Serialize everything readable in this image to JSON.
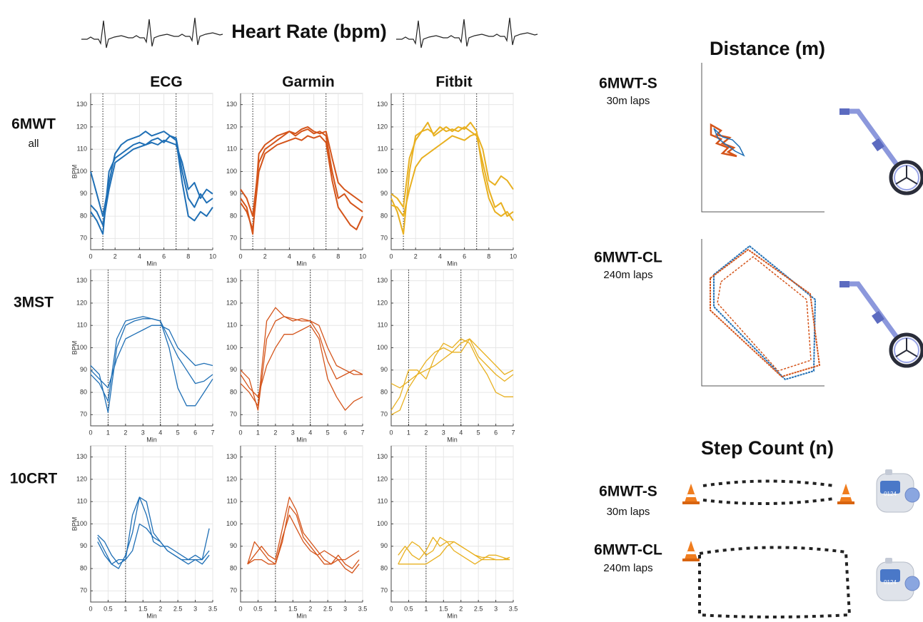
{
  "heart_rate": {
    "title": "Heart Rate (bpm)",
    "columns": [
      "ECG",
      "Garmin",
      "Fitbit"
    ],
    "rows": [
      {
        "label": "6MWT",
        "sublabel": "all"
      },
      {
        "label": "3MST"
      },
      {
        "label": "10CRT"
      }
    ]
  },
  "chart_data": [
    {
      "type": "line",
      "x": [
        0,
        0.5,
        1,
        1.5,
        2,
        2.5,
        3,
        3.5,
        4,
        4.5,
        5,
        5.5,
        6,
        6.5,
        7,
        7.5,
        8,
        8.5,
        9,
        9.5,
        10
      ],
      "series": [
        {
          "color": "#1f6fb5",
          "values": [
            82,
            78,
            72,
            100,
            106,
            108,
            110,
            112,
            113,
            112,
            114,
            115,
            113,
            116,
            115,
            100,
            88,
            84,
            90,
            86,
            88
          ]
        },
        {
          "color": "#1f6fb5",
          "values": [
            100,
            90,
            80,
            95,
            108,
            112,
            114,
            115,
            116,
            118,
            116,
            117,
            118,
            116,
            114,
            95,
            80,
            78,
            82,
            80,
            84
          ]
        },
        {
          "color": "#1f6fb5",
          "values": [
            85,
            82,
            76,
            92,
            104,
            106,
            108,
            110,
            111,
            112,
            113,
            112,
            114,
            113,
            112,
            104,
            92,
            95,
            88,
            92,
            90
          ]
        }
      ],
      "xlim": [
        0,
        10
      ],
      "xticks": [
        0,
        2,
        4,
        6,
        8,
        10
      ],
      "ylim": [
        65,
        135
      ],
      "yticks": [
        70,
        80,
        90,
        100,
        110,
        120,
        130
      ],
      "grid": true,
      "xlabel": "Min",
      "ylabel": "BPM",
      "vlines": [
        1,
        7
      ]
    },
    {
      "type": "line",
      "x": [
        0,
        0.5,
        1,
        1.5,
        2,
        2.5,
        3,
        3.5,
        4,
        4.5,
        5,
        5.5,
        6,
        6.5,
        7,
        7.5,
        8,
        8.5,
        9,
        9.5,
        10
      ],
      "series": [
        {
          "color": "#d4541a",
          "values": [
            88,
            84,
            72,
            108,
            112,
            114,
            116,
            117,
            118,
            116,
            118,
            119,
            117,
            118,
            116,
            100,
            88,
            90,
            86,
            84,
            82
          ]
        },
        {
          "color": "#d4541a",
          "values": [
            86,
            82,
            74,
            100,
            108,
            110,
            112,
            113,
            114,
            115,
            114,
            116,
            115,
            116,
            113,
            96,
            84,
            80,
            76,
            74,
            80
          ]
        },
        {
          "color": "#d4541a",
          "values": [
            92,
            88,
            80,
            104,
            110,
            112,
            114,
            116,
            118,
            117,
            119,
            120,
            118,
            117,
            118,
            106,
            95,
            92,
            90,
            88,
            86
          ]
        }
      ],
      "xlim": [
        0,
        10
      ],
      "xticks": [
        0,
        2,
        4,
        6,
        8,
        10
      ],
      "ylim": [
        65,
        135
      ],
      "yticks": [
        70,
        80,
        90,
        100,
        110,
        120,
        130
      ],
      "grid": true,
      "xlabel": "Min",
      "vlines": [
        1,
        7
      ]
    },
    {
      "type": "line",
      "x": [
        0,
        0.5,
        1,
        1.5,
        2,
        2.5,
        3,
        3.5,
        4,
        4.5,
        5,
        5.5,
        6,
        6.5,
        7,
        7.5,
        8,
        8.5,
        9,
        9.5,
        10
      ],
      "series": [
        {
          "color": "#e8b020",
          "values": [
            88,
            82,
            72,
            100,
            116,
            118,
            119,
            117,
            120,
            118,
            119,
            118,
            120,
            118,
            116,
            104,
            92,
            84,
            86,
            80,
            82
          ]
        },
        {
          "color": "#e8b020",
          "values": [
            85,
            84,
            80,
            92,
            102,
            106,
            108,
            110,
            112,
            114,
            116,
            115,
            114,
            116,
            117,
            110,
            96,
            94,
            98,
            96,
            92
          ]
        },
        {
          "color": "#e8b020",
          "values": [
            90,
            88,
            84,
            106,
            114,
            118,
            122,
            116,
            118,
            120,
            118,
            120,
            119,
            122,
            118,
            100,
            88,
            82,
            80,
            82,
            78
          ]
        }
      ],
      "xlim": [
        0,
        10
      ],
      "xticks": [
        0,
        2,
        4,
        6,
        8,
        10
      ],
      "ylim": [
        65,
        135
      ],
      "yticks": [
        70,
        80,
        90,
        100,
        110,
        120,
        130
      ],
      "grid": true,
      "xlabel": "Min",
      "vlines": [
        1,
        7
      ]
    },
    {
      "type": "line",
      "x": [
        0,
        0.5,
        1,
        1.5,
        2,
        2.5,
        3,
        3.5,
        4,
        4.5,
        5,
        5.5,
        6,
        6.5,
        7
      ],
      "series": [
        {
          "color": "#1f6fb5",
          "values": [
            92,
            88,
            71,
            100,
            110,
            112,
            113,
            113,
            112,
            100,
            82,
            74,
            74,
            80,
            86
          ]
        },
        {
          "color": "#1f6fb5",
          "values": [
            90,
            86,
            82,
            95,
            104,
            106,
            108,
            110,
            110,
            108,
            100,
            96,
            92,
            93,
            92
          ]
        },
        {
          "color": "#1f6fb5",
          "values": [
            88,
            84,
            76,
            104,
            112,
            113,
            114,
            113,
            112,
            104,
            96,
            90,
            84,
            85,
            88
          ]
        }
      ],
      "xlim": [
        0,
        7
      ],
      "xticks": [
        0,
        1,
        2,
        3,
        4,
        5,
        6,
        7
      ],
      "ylim": [
        65,
        135
      ],
      "yticks": [
        70,
        80,
        90,
        100,
        110,
        120,
        130
      ],
      "grid": true,
      "xlabel": "Min",
      "ylabel": "BPM",
      "vlines": [
        1,
        4
      ]
    },
    {
      "type": "line",
      "x": [
        0,
        0.5,
        1,
        1.5,
        2,
        2.5,
        3,
        3.5,
        4,
        4.5,
        5,
        5.5,
        6,
        6.5,
        7
      ],
      "series": [
        {
          "color": "#d4541a",
          "values": [
            90,
            86,
            72,
            104,
            112,
            114,
            112,
            113,
            112,
            106,
            94,
            86,
            88,
            90,
            88
          ]
        },
        {
          "color": "#d4541a",
          "values": [
            88,
            82,
            78,
            92,
            100,
            106,
            106,
            108,
            110,
            104,
            86,
            78,
            72,
            76,
            78
          ]
        },
        {
          "color": "#d4541a",
          "values": [
            84,
            80,
            74,
            112,
            118,
            114,
            113,
            112,
            112,
            110,
            100,
            92,
            90,
            88,
            88
          ]
        }
      ],
      "xlim": [
        0,
        7
      ],
      "xticks": [
        0,
        1,
        2,
        3,
        4,
        5,
        6,
        7
      ],
      "ylim": [
        65,
        135
      ],
      "yticks": [
        70,
        80,
        90,
        100,
        110,
        120,
        130
      ],
      "grid": true,
      "xlabel": "Min",
      "vlines": [
        1,
        4
      ]
    },
    {
      "type": "line",
      "x": [
        0,
        0.5,
        1,
        1.5,
        2,
        2.5,
        3,
        3.5,
        4,
        4.5,
        5,
        5.5,
        6,
        6.5,
        7
      ],
      "series": [
        {
          "color": "#e8b020",
          "values": [
            70,
            72,
            82,
            88,
            90,
            92,
            95,
            98,
            102,
            104,
            100,
            96,
            92,
            88,
            90
          ]
        },
        {
          "color": "#e8b020",
          "values": [
            84,
            82,
            85,
            88,
            94,
            98,
            100,
            98,
            98,
            104,
            96,
            92,
            88,
            85,
            88
          ]
        },
        {
          "color": "#e8b020",
          "values": [
            72,
            78,
            90,
            90,
            86,
            96,
            102,
            100,
            104,
            102,
            94,
            88,
            80,
            78,
            78
          ]
        }
      ],
      "xlim": [
        0,
        7
      ],
      "xticks": [
        0,
        1,
        2,
        3,
        4,
        5,
        6,
        7
      ],
      "ylim": [
        65,
        135
      ],
      "yticks": [
        70,
        80,
        90,
        100,
        110,
        120,
        130
      ],
      "grid": true,
      "xlabel": "Min",
      "vlines": [
        1,
        4
      ]
    },
    {
      "type": "line",
      "x": [
        0.2,
        0.4,
        0.6,
        0.8,
        1,
        1.2,
        1.4,
        1.6,
        1.8,
        2,
        2.2,
        2.4,
        2.6,
        2.8,
        3,
        3.2,
        3.4
      ],
      "series": [
        {
          "color": "#1f6fb5",
          "values": [
            95,
            92,
            86,
            82,
            84,
            104,
            112,
            110,
            96,
            92,
            88,
            86,
            84,
            84,
            86,
            84,
            88
          ]
        },
        {
          "color": "#1f6fb5",
          "values": [
            94,
            88,
            82,
            80,
            86,
            96,
            112,
            104,
            92,
            90,
            90,
            88,
            86,
            84,
            84,
            82,
            86
          ]
        },
        {
          "color": "#1f6fb5",
          "values": [
            92,
            86,
            82,
            84,
            84,
            88,
            100,
            98,
            94,
            92,
            88,
            86,
            84,
            82,
            84,
            84,
            98
          ]
        }
      ],
      "xlim": [
        0,
        3.5
      ],
      "xticks": [
        0,
        0.5,
        1,
        1.5,
        2,
        2.5,
        3,
        3.5
      ],
      "ylim": [
        65,
        135
      ],
      "yticks": [
        70,
        80,
        90,
        100,
        110,
        120,
        130
      ],
      "grid": true,
      "xlabel": "Min",
      "ylabel": "BPM",
      "vlines": [
        1
      ]
    },
    {
      "type": "line",
      "x": [
        0.2,
        0.4,
        0.6,
        0.8,
        1,
        1.2,
        1.4,
        1.6,
        1.8,
        2,
        2.2,
        2.4,
        2.6,
        2.8,
        3,
        3.2,
        3.4
      ],
      "series": [
        {
          "color": "#d4541a",
          "values": [
            82,
            86,
            90,
            86,
            84,
            98,
            112,
            106,
            96,
            92,
            88,
            84,
            82,
            86,
            82,
            80,
            84
          ]
        },
        {
          "color": "#d4541a",
          "values": [
            82,
            84,
            84,
            82,
            82,
            92,
            108,
            104,
            94,
            90,
            86,
            82,
            82,
            84,
            80,
            78,
            82
          ]
        },
        {
          "color": "#d4541a",
          "values": [
            82,
            92,
            88,
            84,
            82,
            94,
            104,
            98,
            92,
            88,
            86,
            88,
            86,
            84,
            84,
            86,
            88
          ]
        }
      ],
      "xlim": [
        0,
        3.5
      ],
      "xticks": [
        0,
        0.5,
        1,
        1.5,
        2,
        2.5,
        3,
        3.5
      ],
      "ylim": [
        65,
        135
      ],
      "yticks": [
        70,
        80,
        90,
        100,
        110,
        120,
        130
      ],
      "grid": true,
      "xlabel": "Min",
      "vlines": [
        1
      ]
    },
    {
      "type": "line",
      "x": [
        0.2,
        0.4,
        0.6,
        0.8,
        1,
        1.2,
        1.4,
        1.6,
        1.8,
        2,
        2.2,
        2.4,
        2.6,
        2.8,
        3,
        3.2,
        3.4
      ],
      "series": [
        {
          "color": "#e8b020",
          "values": [
            82,
            88,
            92,
            90,
            86,
            88,
            94,
            92,
            92,
            90,
            88,
            86,
            85,
            85,
            84,
            84,
            84
          ]
        },
        {
          "color": "#e8b020",
          "values": [
            86,
            90,
            86,
            84,
            88,
            94,
            90,
            92,
            88,
            86,
            84,
            82,
            84,
            86,
            86,
            85,
            84
          ]
        },
        {
          "color": "#e8b020",
          "values": [
            82,
            82,
            82,
            82,
            82,
            84,
            86,
            90,
            92,
            90,
            88,
            86,
            84,
            84,
            84,
            84,
            85
          ]
        }
      ],
      "xlim": [
        0,
        3.5
      ],
      "xticks": [
        0,
        0.5,
        1,
        1.5,
        2,
        2.5,
        3,
        3.5
      ],
      "ylim": [
        65,
        135
      ],
      "yticks": [
        70,
        80,
        90,
        100,
        110,
        120,
        130
      ],
      "grid": true,
      "xlabel": "Min",
      "vlines": [
        1
      ]
    }
  ],
  "distance": {
    "title": "Distance (m)",
    "panels": [
      {
        "label": "6MWT-S",
        "sublabel": "30m laps"
      },
      {
        "label": "6MWT-CL",
        "sublabel": "240m laps"
      }
    ]
  },
  "step_count": {
    "title": "Step Count (n)",
    "panels": [
      {
        "label": "6MWT-S",
        "sublabel": "30m laps"
      },
      {
        "label": "6MWT-CL",
        "sublabel": "240m laps"
      }
    ],
    "counter": "0124"
  }
}
